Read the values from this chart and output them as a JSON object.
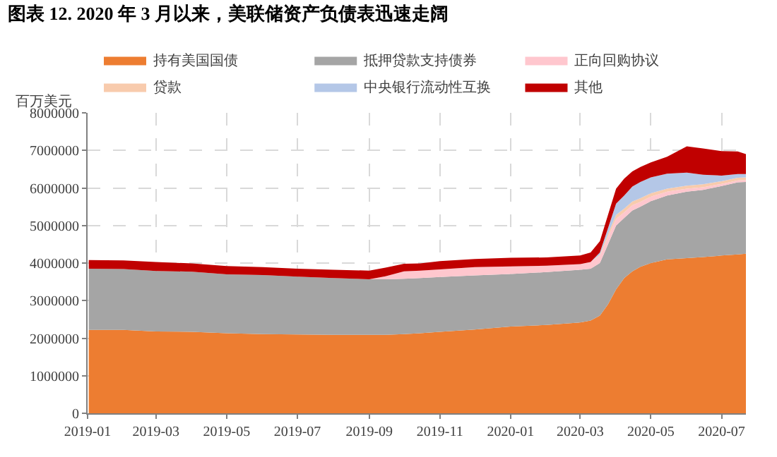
{
  "chart_data": {
    "type": "area",
    "stacked": true,
    "title": "图表 12. 2020 年 3 月以来，美联储资产负债表迅速走阔",
    "ylabel": "百万美元",
    "x": [
      "2019-01-02",
      "2019-02-01",
      "2019-03-01",
      "2019-04-01",
      "2019-05-01",
      "2019-06-01",
      "2019-07-01",
      "2019-08-01",
      "2019-09-01",
      "2019-09-15",
      "2019-10-01",
      "2019-10-15",
      "2019-11-01",
      "2019-12-01",
      "2020-01-01",
      "2020-02-01",
      "2020-03-01",
      "2020-03-10",
      "2020-03-18",
      "2020-03-25",
      "2020-04-01",
      "2020-04-08",
      "2020-04-15",
      "2020-04-22",
      "2020-05-01",
      "2020-05-15",
      "2020-06-01",
      "2020-06-15",
      "2020-07-01",
      "2020-07-15",
      "2020-07-22"
    ],
    "series": [
      {
        "name": "持有美国国债",
        "color": "#ed7d31",
        "values": [
          2220000,
          2220000,
          2180000,
          2170000,
          2130000,
          2110000,
          2100000,
          2090000,
          2090000,
          2090000,
          2110000,
          2130000,
          2170000,
          2230000,
          2310000,
          2350000,
          2420000,
          2470000,
          2600000,
          2900000,
          3300000,
          3600000,
          3780000,
          3900000,
          4000000,
          4100000,
          4130000,
          4160000,
          4200000,
          4230000,
          4250000
        ]
      },
      {
        "name": "抵押贷款支持债券",
        "color": "#a5a5a5",
        "values": [
          1630000,
          1620000,
          1610000,
          1600000,
          1570000,
          1570000,
          1540000,
          1510000,
          1480000,
          1480000,
          1470000,
          1470000,
          1460000,
          1440000,
          1400000,
          1410000,
          1400000,
          1380000,
          1400000,
          1600000,
          1700000,
          1600000,
          1620000,
          1600000,
          1650000,
          1700000,
          1770000,
          1790000,
          1850000,
          1920000,
          1910000
        ]
      },
      {
        "name": "正向回购协议",
        "color": "#ffc7ce",
        "values": [
          0,
          0,
          0,
          0,
          0,
          0,
          0,
          0,
          0,
          80000,
          200000,
          200000,
          200000,
          220000,
          200000,
          170000,
          150000,
          180000,
          200000,
          200000,
          180000,
          150000,
          140000,
          130000,
          120000,
          100000,
          80000,
          70000,
          60000,
          50000,
          50000
        ]
      },
      {
        "name": "贷款",
        "color": "#f8cbad",
        "values": [
          0,
          0,
          0,
          0,
          0,
          0,
          0,
          0,
          0,
          0,
          0,
          0,
          0,
          0,
          0,
          0,
          0,
          0,
          30000,
          80000,
          100000,
          100000,
          100000,
          100000,
          90000,
          80000,
          80000,
          80000,
          70000,
          70000,
          70000
        ]
      },
      {
        "name": "中央银行流动性互换",
        "color": "#b4c7e7",
        "values": [
          0,
          0,
          0,
          0,
          0,
          0,
          0,
          0,
          0,
          0,
          0,
          0,
          0,
          0,
          0,
          0,
          0,
          0,
          50000,
          150000,
          300000,
          350000,
          400000,
          430000,
          420000,
          400000,
          350000,
          250000,
          150000,
          100000,
          90000
        ]
      },
      {
        "name": "其他",
        "color": "#c00000",
        "values": [
          230000,
          230000,
          240000,
          220000,
          220000,
          210000,
          210000,
          220000,
          230000,
          230000,
          200000,
          190000,
          220000,
          220000,
          230000,
          220000,
          230000,
          250000,
          300000,
          350000,
          400000,
          450000,
          400000,
          400000,
          400000,
          450000,
          700000,
          700000,
          650000,
          600000,
          530000
        ]
      }
    ],
    "xlim": [
      "2019-01-01",
      "2020-07-22"
    ],
    "xticks": [
      "2019-01",
      "2019-03",
      "2019-05",
      "2019-07",
      "2019-09",
      "2019-11",
      "2020-01",
      "2020-03",
      "2020-05",
      "2020-07"
    ],
    "ylim": [
      0,
      8000000
    ],
    "yticks": [
      0,
      1000000,
      2000000,
      3000000,
      4000000,
      5000000,
      6000000,
      7000000,
      8000000
    ],
    "grid": true,
    "legend": "top"
  }
}
